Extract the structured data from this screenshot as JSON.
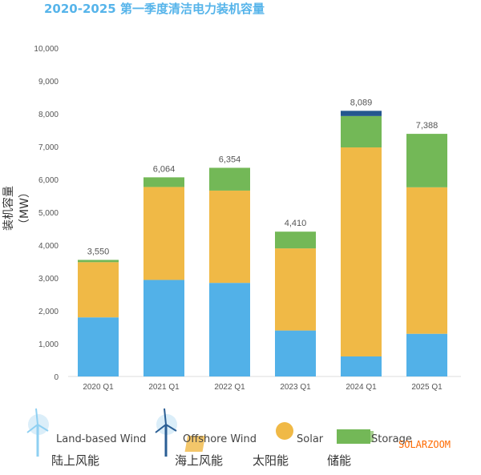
{
  "chart_data": {
    "type": "bar",
    "stacked": true,
    "title": "2020-2025 第一季度清洁电力装机容量",
    "ylabel": "装机容量（MW）",
    "xlabel": "",
    "ylim": [
      0,
      10000
    ],
    "yticks": [
      "10,000",
      "9,000",
      "8,000",
      "7,000",
      "6,000",
      "5,000",
      "4,000",
      "3,000",
      "2,000",
      "1,000",
      "0"
    ],
    "categories": [
      "2020 Q1",
      "2021 Q1",
      "2022 Q1",
      "2023 Q1",
      "2024 Q1",
      "2025 Q1"
    ],
    "totals": [
      "3,550",
      "6,064",
      "6,354",
      "4,410",
      "8,089",
      "7,388"
    ],
    "series": [
      {
        "name": "Land-based Wind",
        "name_cn": "陆上风能",
        "color": "#52b1e8",
        "values": [
          1800,
          2940,
          2850,
          1400,
          610,
          1300
        ]
      },
      {
        "name": "Solar",
        "name_cn": "太阳能",
        "color": "#f0b946",
        "values": [
          1680,
          2830,
          2810,
          2500,
          6365,
          4460
        ]
      },
      {
        "name": "Storage",
        "name_cn": "储能",
        "color": "#73b857",
        "values": [
          70,
          294,
          694,
          510,
          955,
          1628
        ]
      },
      {
        "name": "Offshore Wind",
        "name_cn": "海上风能",
        "color": "#24578f",
        "values": [
          0,
          0,
          0,
          0,
          159,
          0
        ]
      }
    ]
  },
  "watermark": "SOLARZOOM"
}
